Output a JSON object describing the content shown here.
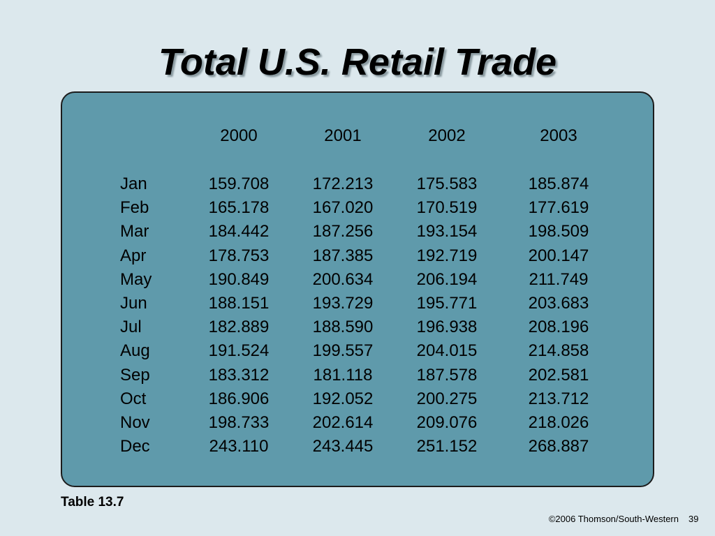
{
  "header": {
    "title": "Total U.S. Retail Trade"
  },
  "table": {
    "columns": [
      "2000",
      "2001",
      "2002",
      "2003"
    ],
    "rows": [
      [
        "Jan",
        "159.708",
        "172.213",
        "175.583",
        "185.874"
      ],
      [
        "Feb",
        "165.178",
        "167.020",
        "170.519",
        "177.619"
      ],
      [
        "Mar",
        "184.442",
        "187.256",
        "193.154",
        "198.509"
      ],
      [
        "Apr",
        "178.753",
        "187.385",
        "192.719",
        "200.147"
      ],
      [
        "May",
        "190.849",
        "200.634",
        "206.194",
        "211.749"
      ],
      [
        "Jun",
        "188.151",
        "193.729",
        "195.771",
        "203.683"
      ],
      [
        "Jul",
        "182.889",
        "188.590",
        "196.938",
        "208.196"
      ],
      [
        "Aug",
        "191.524",
        "199.557",
        "204.015",
        "214.858"
      ],
      [
        "Sep",
        "183.312",
        "181.118",
        "187.578",
        "202.581"
      ],
      [
        "Oct",
        "186.906",
        "192.052",
        "200.275",
        "213.712"
      ],
      [
        "Nov",
        "198.733",
        "202.614",
        "209.076",
        "218.026"
      ],
      [
        "Dec",
        "243.110",
        "243.445",
        "251.152",
        "268.887"
      ]
    ],
    "caption": "Table 13.7"
  },
  "footer": {
    "copyright": "©2006 Thomson/South-Western",
    "page": "39"
  }
}
